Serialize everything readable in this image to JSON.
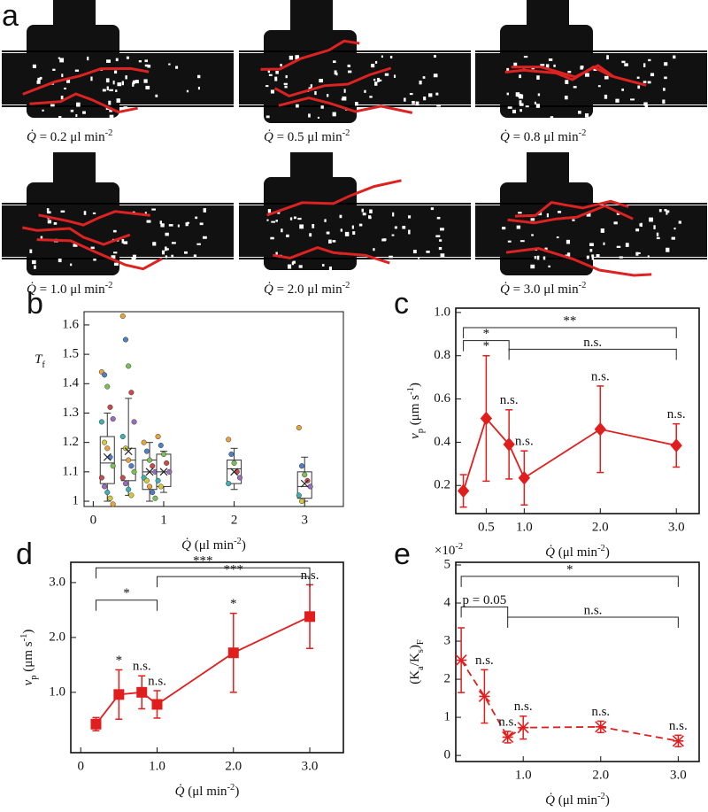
{
  "panel_a": {
    "label": "a",
    "captions": [
      [
        {
          "text": "Q̇",
          "style": "i"
        },
        {
          "text": " = 0.2 μl min"
        },
        {
          "text": "-2",
          "style": "sup"
        }
      ],
      [
        {
          "text": "Q̇",
          "style": "i"
        },
        {
          "text": " = 0.5 μl min"
        },
        {
          "text": "-2",
          "style": "sup"
        }
      ],
      [
        {
          "text": "Q̇",
          "style": "i"
        },
        {
          "text": " = 0.8 μl min"
        },
        {
          "text": "-2",
          "style": "sup"
        }
      ],
      [
        {
          "text": "Q̇",
          "style": "i"
        },
        {
          "text": " = 1.0 μl min"
        },
        {
          "text": "-2",
          "style": "sup"
        }
      ],
      [
        {
          "text": "Q̇",
          "style": "i"
        },
        {
          "text": " = 2.0 μl min"
        },
        {
          "text": "-2",
          "style": "sup"
        }
      ],
      [
        {
          "text": "Q̇",
          "style": "i"
        },
        {
          "text": " = 3.0 μl min"
        },
        {
          "text": "-2",
          "style": "sup"
        }
      ]
    ]
  },
  "chart_data": [
    {
      "type": "box",
      "panel_label": "b",
      "y_label": [
        {
          "text": "T",
          "style": "i"
        },
        {
          "text": "f",
          "style": "sub"
        }
      ],
      "x_label": [
        {
          "text": "Q̇",
          "style": "i"
        },
        {
          "text": " (μl min"
        },
        {
          "text": "-2",
          "style": "sup"
        },
        {
          "text": ")"
        }
      ],
      "xlim": [
        -0.13,
        3.55
      ],
      "xticks": [
        0,
        1,
        2,
        3
      ],
      "ylim": [
        0.982,
        1.645
      ],
      "yticks": [
        1,
        1.1,
        1.2,
        1.3,
        1.4,
        1.5,
        1.6
      ],
      "color": "#333333",
      "point_colors": [
        "#e8a33d",
        "#4f7fc4",
        "#7cbf5a",
        "#c94a4a",
        "#9a6cc0",
        "#3fb0b0",
        "#d6c93a"
      ],
      "boxes": [
        {
          "x": 0.2,
          "whislo": 1.0,
          "q1": 1.06,
          "med": 1.13,
          "q3": 1.22,
          "whishi": 1.3,
          "mean": 1.15,
          "points": [
            1.44,
            1.43,
            1.39,
            1.32,
            1.28,
            1.27,
            1.2,
            1.18,
            1.15,
            1.12,
            1.08,
            1.05,
            1.03,
            1.01,
            0.99
          ]
        },
        {
          "x": 0.5,
          "whislo": 1.02,
          "q1": 1.07,
          "med": 1.14,
          "q3": 1.18,
          "whishi": 1.35,
          "mean": 1.17,
          "points": [
            1.63,
            1.55,
            1.46,
            1.37,
            1.27,
            1.22,
            1.18,
            1.14,
            1.12,
            1.1,
            1.08,
            1.06,
            1.04,
            1.02
          ]
        },
        {
          "x": 0.8,
          "whislo": 1.0,
          "q1": 1.04,
          "med": 1.1,
          "q3": 1.14,
          "whishi": 1.2,
          "mean": 1.1,
          "points": [
            1.2,
            1.17,
            1.14,
            1.12,
            1.1,
            1.08,
            1.07,
            1.05,
            1.03,
            1.01
          ]
        },
        {
          "x": 1.0,
          "whislo": 1.03,
          "q1": 1.05,
          "med": 1.1,
          "q3": 1.16,
          "whishi": 1.17,
          "mean": 1.1,
          "points": [
            1.22,
            1.19,
            1.16,
            1.13,
            1.1,
            1.07,
            1.05
          ]
        },
        {
          "x": 2.0,
          "whislo": 1.04,
          "q1": 1.06,
          "med": 1.11,
          "q3": 1.14,
          "whishi": 1.18,
          "mean": 1.1,
          "points": [
            1.21,
            1.16,
            1.13,
            1.1,
            1.08,
            1.06
          ]
        },
        {
          "x": 3.0,
          "whislo": 1.0,
          "q1": 1.01,
          "med": 1.05,
          "q3": 1.1,
          "whishi": 1.15,
          "mean": 1.06,
          "points": [
            1.25,
            1.12,
            1.09,
            1.07,
            1.05,
            1.02,
            1.0
          ]
        }
      ]
    },
    {
      "type": "line",
      "panel_label": "c",
      "y_label": [
        {
          "text": "v",
          "style": "i"
        },
        {
          "text": "p",
          "style": "sub"
        },
        {
          "text": " (μm s"
        },
        {
          "text": "-1",
          "style": "sup"
        },
        {
          "text": ")"
        }
      ],
      "x_label": [
        {
          "text": "Q̇",
          "style": "i"
        },
        {
          "text": " (μl min"
        },
        {
          "text": "-2",
          "style": "sup"
        },
        {
          "text": ")"
        }
      ],
      "xlim": [
        0.1,
        3.3
      ],
      "xticks": [
        0.5,
        {
          "value": 1,
          "label": "1.0"
        },
        {
          "value": 2,
          "label": "2.0"
        },
        {
          "value": 3,
          "label": "3.0"
        }
      ],
      "ylim": [
        0.07,
        1.02
      ],
      "yticks": [
        0.2,
        0.4,
        0.6,
        0.8,
        {
          "value": 1,
          "label": "1.0"
        }
      ],
      "x": [
        0.2,
        0.5,
        0.8,
        1.0,
        2.0,
        3.0
      ],
      "series": [
        {
          "color": "#e01e1e",
          "marker": "diamond",
          "dash": false,
          "values": [
            0.175,
            0.51,
            0.39,
            0.235,
            0.46,
            0.385
          ],
          "errors": [
            0.075,
            0.29,
            0.16,
            0.125,
            0.2,
            0.1
          ],
          "significance": [
            null,
            "*",
            "n.s.",
            "n.s.",
            "n.s.",
            "n.s."
          ]
        }
      ],
      "brackets": [
        {
          "x1": 0.2,
          "x2": 3.0,
          "y": 0.93,
          "label": "**"
        },
        {
          "x1": 0.2,
          "x2": 0.8,
          "y": 0.87,
          "label": "*"
        },
        {
          "x1": 0.8,
          "x2": 3.0,
          "y": 0.83,
          "label": "n.s."
        }
      ]
    },
    {
      "type": "line",
      "panel_label": "d",
      "y_label": [
        {
          "text": "v",
          "style": "i"
        },
        {
          "text": "p",
          "style": "sub"
        },
        {
          "text": " (μm s"
        },
        {
          "text": "-1",
          "style": "sup"
        },
        {
          "text": ")"
        }
      ],
      "x_label": [
        {
          "text": "Q̇",
          "style": "i"
        },
        {
          "text": " (μl min"
        },
        {
          "text": "-2",
          "style": "sup"
        },
        {
          "text": ")"
        }
      ],
      "xlim": [
        -0.13,
        3.44
      ],
      "xticks": [
        0,
        {
          "value": 1,
          "label": "1.0"
        },
        {
          "value": 2,
          "label": "2.0"
        },
        {
          "value": 3,
          "label": "3.0"
        }
      ],
      "ylim": [
        -0.1,
        3.37
      ],
      "yticks": [
        {
          "value": 1,
          "label": "1.0"
        },
        {
          "value": 2,
          "label": "2.0"
        },
        {
          "value": 3,
          "label": "3.0"
        }
      ],
      "x": [
        0.2,
        0.5,
        0.8,
        1.0,
        2.0,
        3.0
      ],
      "series": [
        {
          "color": "#e01e1e",
          "marker": "square",
          "dash": false,
          "values": [
            0.42,
            0.96,
            1.0,
            0.78,
            1.72,
            2.38
          ],
          "errors": [
            0.12,
            0.45,
            0.3,
            0.25,
            0.72,
            0.58
          ],
          "significance": [
            null,
            "*",
            "n.s.",
            "n.s.",
            "*",
            "n.s."
          ]
        }
      ],
      "brackets": [
        {
          "x1": 0.2,
          "x2": 3.0,
          "y": 3.27,
          "label": "***"
        },
        {
          "x1": 1.0,
          "x2": 3.0,
          "y": 3.11,
          "label": "***"
        },
        {
          "x1": 0.2,
          "x2": 1.0,
          "y": 2.68,
          "label": "*"
        }
      ]
    },
    {
      "type": "line",
      "panel_label": "e",
      "y_label": [
        {
          "text": "(K"
        },
        {
          "text": "a",
          "style": "sub"
        },
        {
          "text": "/K"
        },
        {
          "text": "s",
          "style": "sub"
        },
        {
          "text": ")"
        },
        {
          "text": "F",
          "style": "sub"
        }
      ],
      "x_label": [
        {
          "text": "Q̇",
          "style": "i"
        },
        {
          "text": " (μl min"
        },
        {
          "text": "-2",
          "style": "sup"
        },
        {
          "text": ")"
        }
      ],
      "multiplier": [
        {
          "text": "×10"
        },
        {
          "text": "-2",
          "style": "sup"
        }
      ],
      "xlim": [
        0.13,
        3.27
      ],
      "xticks": [
        {
          "value": 1,
          "label": "1.0"
        },
        {
          "value": 2,
          "label": "2.0"
        },
        {
          "value": 3,
          "label": "3.0"
        }
      ],
      "ylim": [
        -0.16,
        5.07
      ],
      "yticks": [
        0,
        1,
        2,
        3,
        4,
        5
      ],
      "x": [
        0.2,
        0.5,
        0.8,
        1.0,
        2.0,
        3.0
      ],
      "series": [
        {
          "color": "#e01e1e",
          "marker": "cross",
          "dash": true,
          "values": [
            2.5,
            1.55,
            0.48,
            0.73,
            0.75,
            0.38
          ],
          "errors": [
            0.85,
            0.7,
            0.15,
            0.3,
            0.15,
            0.15
          ],
          "significance": [
            null,
            "n.s.",
            "n.s.",
            "n.s.",
            "n.s.",
            "n.s."
          ]
        }
      ],
      "brackets": [
        {
          "x1": 0.2,
          "x2": 3.0,
          "y": 4.7,
          "label": "*"
        },
        {
          "x1": 0.2,
          "x2": 0.8,
          "y": 3.9,
          "label": "p = 0.05"
        },
        {
          "x1": 0.8,
          "x2": 3.0,
          "y": 3.63,
          "label": "n.s."
        }
      ]
    }
  ]
}
